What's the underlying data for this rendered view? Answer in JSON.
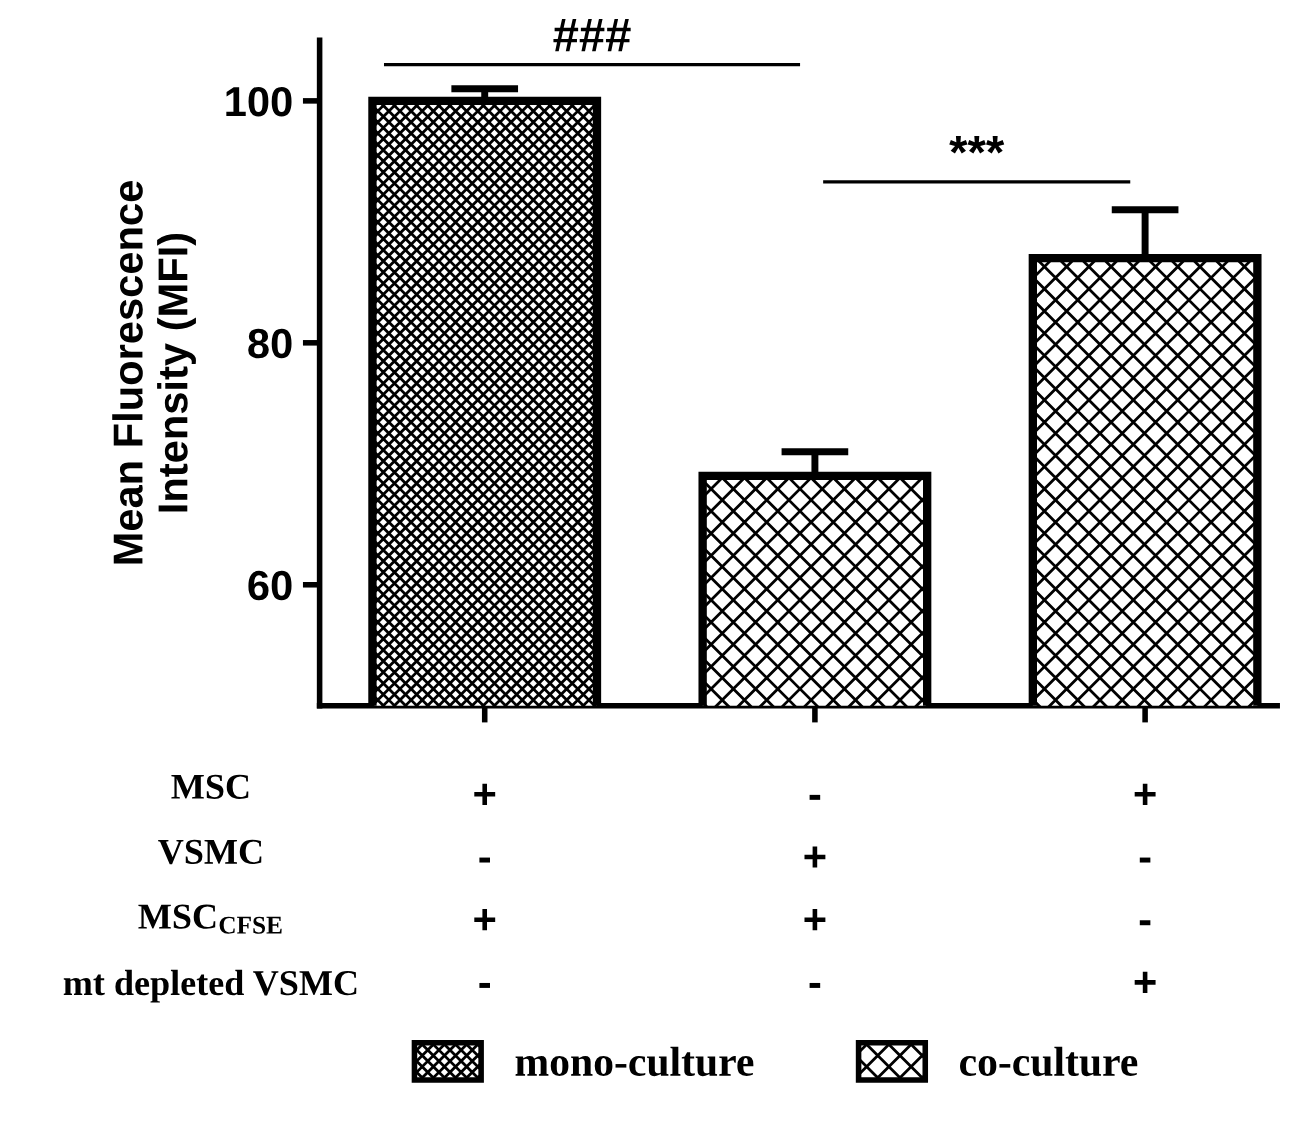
{
  "chart_data": {
    "type": "bar",
    "ylabel": "Mean Fluorescence\nIntensity (MFI)",
    "categories": [
      "+\n-\n+\n-",
      "-\n+\n+\n-",
      "+\n-\n-\n+"
    ],
    "series": [
      {
        "name": "mono-culture",
        "color": "#000000",
        "values": [
          100,
          null,
          null
        ],
        "errors": [
          1,
          null,
          null
        ]
      },
      {
        "name": "co-culture",
        "color": "#000000",
        "values": [
          null,
          69,
          87
        ],
        "errors": [
          null,
          2,
          4
        ]
      }
    ],
    "stacked": true,
    "ylim": [
      50,
      105
    ],
    "yticks": [
      60,
      80,
      100
    ],
    "grid": false,
    "legend": "bottom",
    "annotations": [
      "###",
      "***",
      "MSC",
      "VSMC",
      "MSC$_{CFSE}$",
      "mt depleted VSMC"
    ]
  }
}
